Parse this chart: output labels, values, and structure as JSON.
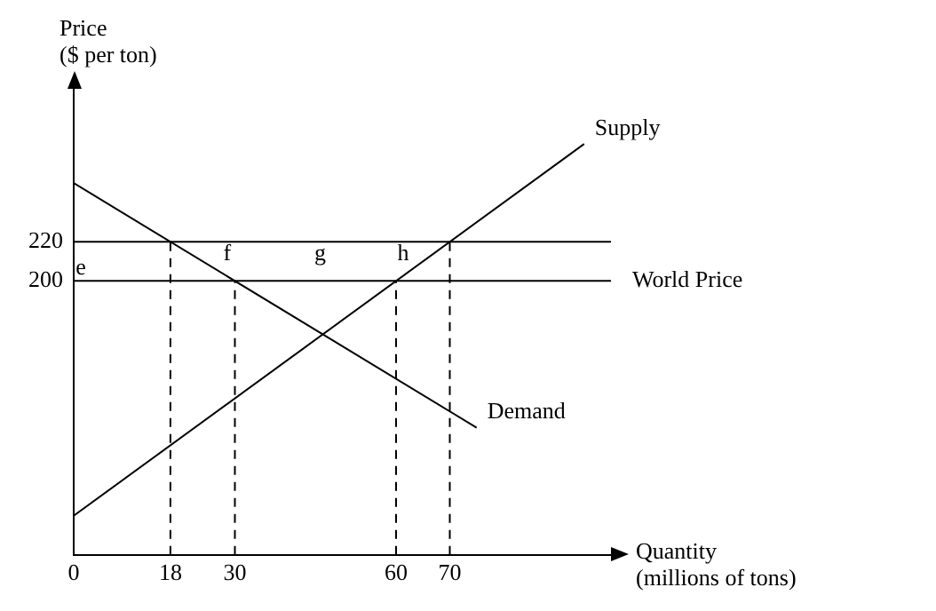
{
  "chart_data": {
    "type": "line",
    "xlabel": "Quantity\n(millions of tons)",
    "ylabel": "Price\n($ per ton)",
    "xlim": [
      0,
      100
    ],
    "xticks": [
      0,
      18,
      30,
      60,
      70
    ],
    "ylim": [
      60,
      300
    ],
    "yticks": [
      200,
      220
    ],
    "grid": false,
    "legend": false,
    "marker": "none",
    "series": [
      {
        "name": "Supply",
        "color": "#000000",
        "x": [
          0,
          95
        ],
        "values": [
          80,
          270
        ]
      },
      {
        "name": "Demand",
        "color": "#000000",
        "x": [
          0,
          75
        ],
        "values": [
          250,
          125
        ]
      },
      {
        "color": "#000000",
        "x": [
          18,
          18
        ],
        "values": [
          60,
          220
        ],
        "line_style": "dashed"
      },
      {
        "color": "#000000",
        "x": [
          30,
          30
        ],
        "values": [
          60,
          200
        ],
        "line_style": "dashed"
      },
      {
        "color": "#000000",
        "x": [
          60,
          60
        ],
        "values": [
          60,
          200
        ],
        "line_style": "dashed"
      },
      {
        "color": "#000000",
        "x": [
          70,
          70
        ],
        "values": [
          60,
          220
        ],
        "line_style": "dashed"
      }
    ],
    "ref_lines": [
      {
        "axis": "y",
        "value": 220,
        "color": "#000000"
      },
      {
        "axis": "y",
        "value": 200,
        "label": "World Price",
        "color": "#000000"
      }
    ],
    "annotations": [
      "e",
      "f",
      "g",
      "h"
    ]
  }
}
